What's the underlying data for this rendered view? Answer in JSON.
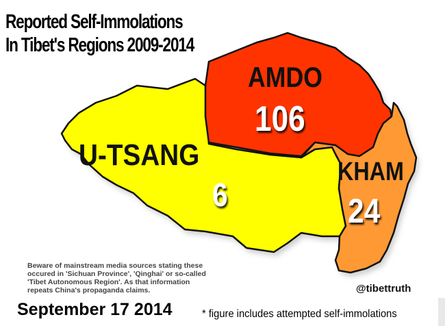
{
  "title": {
    "line1": "Reported Self-Immolations",
    "line2": "In Tibet's Regions 2009-2014"
  },
  "regions": [
    {
      "name": "U-TSANG",
      "count": "6",
      "color": "#ffff00"
    },
    {
      "name": "AMDO",
      "count": "106",
      "color": "#ff3300"
    },
    {
      "name": "KHAM",
      "count": "24",
      "color": "#ff9933"
    }
  ],
  "colors": {
    "border": "#111111",
    "shadow": "#cfcfcf",
    "label_text": "#111111",
    "count_text": "#ffffff"
  },
  "disclaimer": {
    "line1": "Beware of mainstream media sources stating these",
    "line2": "occured in 'Sichuan Province', 'Qinghai' or so-called",
    "line3": "'Tibet Autonomous Region'. As that information",
    "line4": "repeats China's propaganda claims."
  },
  "handle": "@tibettruth",
  "date": "September 17 2014",
  "footnote": "* figure includes attempted self-immolations"
}
